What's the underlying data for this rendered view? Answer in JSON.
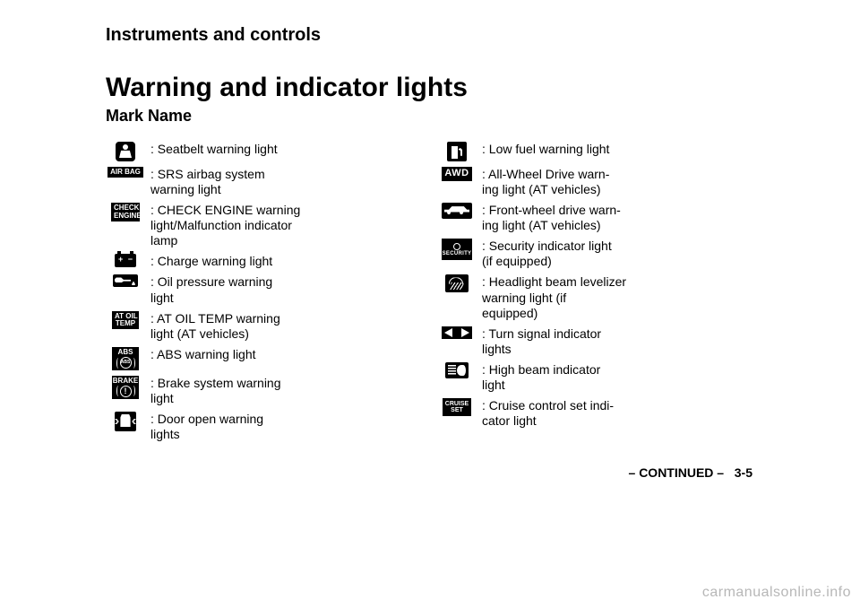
{
  "chapter": "Instruments and controls",
  "title": "Warning and indicator lights",
  "subtitle": "Mark\tName",
  "left": [
    {
      "icon": "seatbelt",
      "label": ": Seatbelt warning light"
    },
    {
      "icon": "airbag",
      "label": ": SRS airbag system\nwarning light"
    },
    {
      "icon": "check",
      "label": ": CHECK ENGINE warning\nlight/Malfunction indicator\nlamp"
    },
    {
      "icon": "battery",
      "label": ": Charge warning light"
    },
    {
      "icon": "oil",
      "label": ": Oil pressure warning\nlight"
    },
    {
      "icon": "atoil",
      "label": ": AT OIL TEMP warning\nlight (AT vehicles)"
    },
    {
      "icon": "abs",
      "label": ": ABS warning light"
    },
    {
      "icon": "brake",
      "label": ": Brake system warning\nlight"
    },
    {
      "icon": "door",
      "label": ": Door open warning\nlights"
    }
  ],
  "right": [
    {
      "icon": "fuel",
      "label": ": Low fuel warning light"
    },
    {
      "icon": "awd",
      "label": ": All-Wheel Drive warn-\ning light (AT vehicles)"
    },
    {
      "icon": "fwd",
      "label": ": Front-wheel drive warn-\ning light (AT vehicles)"
    },
    {
      "icon": "security",
      "label": ": Security indicator light\n(if equipped)"
    },
    {
      "icon": "levelizer",
      "label": ": Headlight beam levelizer\nwarning light (if\nequipped)"
    },
    {
      "icon": "turn",
      "label": ": Turn signal indicator\nlights"
    },
    {
      "icon": "high",
      "label": ": High beam indicator\nlight"
    },
    {
      "icon": "cruise",
      "label": ": Cruise control set indi-\ncator light"
    }
  ],
  "iconText": {
    "airbag": "AIR BAG",
    "check": "CHECK\nENGINE",
    "atoil": "AT OIL\nTEMP",
    "abs_top": "ABS",
    "abs_inner": "ABS",
    "brake_top": "BRAKE",
    "brake_inner": "!",
    "awd": "AWD",
    "security": "SECURITY",
    "cruise": "CRUISE\nSET"
  },
  "pagenum": "3-5",
  "continued": "– CONTINUED –",
  "watermark": "carmanualsonline.info",
  "colors": {
    "text": "#000000",
    "bg": "#ffffff",
    "watermark": "#b7b7b7"
  }
}
